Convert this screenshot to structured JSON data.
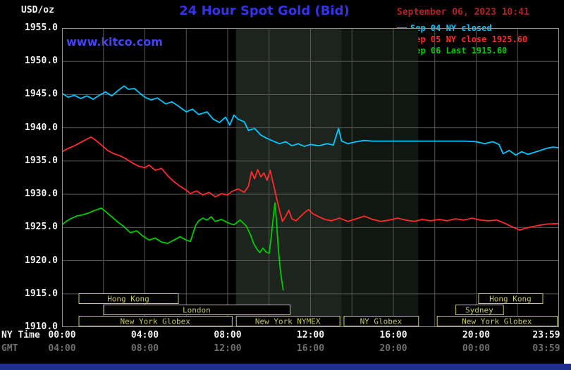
{
  "header": {
    "unit": "USD/oz",
    "title": "24 Hour Spot Gold (Bid)",
    "datetime": "September 06, 2023 10:41",
    "watermark": "www.kitco.com"
  },
  "legend": {
    "items": [
      {
        "label": "Sep 04 NY closed",
        "color": "#00c8ff"
      },
      {
        "label": "Sep 05 NY close 1925.60",
        "color": "#ff2a2a"
      },
      {
        "label": "Sep 06 Last 1915.60",
        "color": "#00cc00"
      }
    ]
  },
  "colors": {
    "background": "#000000",
    "title_text": "#3333ee",
    "date_text": "#b22222",
    "watermark_text": "#4444ff",
    "grid": "#565656",
    "frame": "#8d8d8d",
    "session": "#c8c864",
    "tick_text": "#f0f0f0",
    "gmt_text": "#6f6f6f",
    "footer_bar": "#1f2f8e"
  },
  "axes": {
    "ny_label": "NY Time",
    "gmt_label": "GMT",
    "yticks": [
      {
        "label": "1955.0",
        "value": 1955
      },
      {
        "label": "1950.0",
        "value": 1950
      },
      {
        "label": "1945.0",
        "value": 1945
      },
      {
        "label": "1940.0",
        "value": 1940
      },
      {
        "label": "1935.0",
        "value": 1935
      },
      {
        "label": "1930.0",
        "value": 1930
      },
      {
        "label": "1925.0",
        "value": 1925
      },
      {
        "label": "1920.0",
        "value": 1920
      },
      {
        "label": "1915.0",
        "value": 1915
      },
      {
        "label": "1910.0",
        "value": 1910
      }
    ],
    "xticks": [
      {
        "ny": "00:00",
        "gmt": "04:00",
        "h": 0
      },
      {
        "ny": "04:00",
        "gmt": "08:00",
        "h": 4
      },
      {
        "ny": "08:00",
        "gmt": "12:00",
        "h": 8
      },
      {
        "ny": "12:00",
        "gmt": "16:00",
        "h": 12
      },
      {
        "ny": "16:00",
        "gmt": "20:00",
        "h": 16
      },
      {
        "ny": "20:00",
        "gmt": "00:00",
        "h": 20
      },
      {
        "ny": "23:59",
        "gmt": "03:59",
        "h": 23.983
      }
    ]
  },
  "chart_data": {
    "type": "line",
    "title": "24 Hour Spot Gold (Bid)",
    "xlabel": "NY Time (hours)",
    "ylabel": "USD/oz",
    "ylim": [
      1910,
      1955
    ],
    "xlim_hours": [
      0,
      24
    ],
    "grid": {
      "x_step_hours": 2,
      "y_step": 5
    },
    "legend_position": "top-right",
    "session_bands": [
      {
        "start": 8.4,
        "end": 13.5,
        "color": "#1d241d"
      },
      {
        "start": 13.5,
        "end": 17.2,
        "color": "#101710"
      }
    ],
    "session_boxes": [
      {
        "label": "Hong Kong",
        "row": 0,
        "start": 0.8,
        "end": 5.6
      },
      {
        "label": "London",
        "row": 1,
        "start": 2.0,
        "end": 11.0
      },
      {
        "label": "New York Globex",
        "row": 2,
        "start": 0.8,
        "end": 8.2
      },
      {
        "label": "New York NYMEX",
        "row": 2,
        "start": 8.4,
        "end": 13.4
      },
      {
        "label": "NY Globex",
        "row": 2,
        "start": 13.6,
        "end": 17.2
      },
      {
        "label": "New York Globex",
        "row": 2,
        "start": 18.1,
        "end": 23.9
      },
      {
        "label": "Sydney",
        "row": 1,
        "start": 19.0,
        "end": 21.3
      },
      {
        "label": "Hong Kong",
        "row": 0,
        "start": 20.1,
        "end": 23.2
      }
    ],
    "series": [
      {
        "name": "Sep 04 NY closed",
        "color": "#00c8ff",
        "points": [
          [
            0,
            1945.2
          ],
          [
            0.3,
            1944.6
          ],
          [
            0.6,
            1944.9
          ],
          [
            0.9,
            1944.4
          ],
          [
            1.2,
            1944.8
          ],
          [
            1.5,
            1944.3
          ],
          [
            1.8,
            1944.9
          ],
          [
            2.1,
            1945.4
          ],
          [
            2.4,
            1944.8
          ],
          [
            2.7,
            1945.6
          ],
          [
            3.0,
            1946.3
          ],
          [
            3.2,
            1945.8
          ],
          [
            3.5,
            1945.9
          ],
          [
            3.8,
            1945.1
          ],
          [
            4.0,
            1944.6
          ],
          [
            4.3,
            1944.2
          ],
          [
            4.6,
            1944.5
          ],
          [
            5.0,
            1943.6
          ],
          [
            5.3,
            1943.9
          ],
          [
            5.6,
            1943.3
          ],
          [
            6.0,
            1942.4
          ],
          [
            6.3,
            1942.8
          ],
          [
            6.6,
            1942.0
          ],
          [
            7.0,
            1942.4
          ],
          [
            7.3,
            1941.3
          ],
          [
            7.6,
            1940.8
          ],
          [
            7.9,
            1941.6
          ],
          [
            8.1,
            1940.4
          ],
          [
            8.3,
            1941.9
          ],
          [
            8.5,
            1941.3
          ],
          [
            8.8,
            1940.9
          ],
          [
            9.0,
            1939.6
          ],
          [
            9.3,
            1939.9
          ],
          [
            9.6,
            1938.9
          ],
          [
            9.9,
            1938.4
          ],
          [
            10.2,
            1938.0
          ],
          [
            10.5,
            1937.6
          ],
          [
            10.8,
            1937.9
          ],
          [
            11.1,
            1937.3
          ],
          [
            11.4,
            1937.6
          ],
          [
            11.7,
            1937.2
          ],
          [
            12.0,
            1937.5
          ],
          [
            12.4,
            1937.3
          ],
          [
            12.8,
            1937.6
          ],
          [
            13.1,
            1937.4
          ],
          [
            13.35,
            1939.9
          ],
          [
            13.5,
            1938.0
          ],
          [
            13.8,
            1937.6
          ],
          [
            14.2,
            1937.9
          ],
          [
            14.6,
            1938.1
          ],
          [
            15.0,
            1938.0
          ],
          [
            15.5,
            1938.0
          ],
          [
            16.0,
            1938.0
          ],
          [
            16.5,
            1938.0
          ],
          [
            17.0,
            1938.0
          ],
          [
            17.5,
            1938.0
          ],
          [
            18.0,
            1938.0
          ],
          [
            18.5,
            1938.0
          ],
          [
            19.0,
            1938.0
          ],
          [
            19.5,
            1938.0
          ],
          [
            20.0,
            1937.9
          ],
          [
            20.4,
            1937.6
          ],
          [
            20.8,
            1937.9
          ],
          [
            21.1,
            1937.5
          ],
          [
            21.3,
            1936.1
          ],
          [
            21.6,
            1936.6
          ],
          [
            21.9,
            1935.9
          ],
          [
            22.2,
            1936.4
          ],
          [
            22.5,
            1936.0
          ],
          [
            22.8,
            1936.3
          ],
          [
            23.1,
            1936.6
          ],
          [
            23.4,
            1936.9
          ],
          [
            23.7,
            1937.1
          ],
          [
            23.98,
            1937.0
          ]
        ]
      },
      {
        "name": "Sep 05 NY close 1925.60",
        "color": "#ff2a2a",
        "points": [
          [
            0,
            1936.4
          ],
          [
            0.3,
            1936.9
          ],
          [
            0.6,
            1937.3
          ],
          [
            0.9,
            1937.8
          ],
          [
            1.2,
            1938.3
          ],
          [
            1.4,
            1938.6
          ],
          [
            1.6,
            1938.2
          ],
          [
            1.9,
            1937.4
          ],
          [
            2.2,
            1936.6
          ],
          [
            2.5,
            1936.1
          ],
          [
            2.8,
            1935.8
          ],
          [
            3.1,
            1935.3
          ],
          [
            3.4,
            1934.7
          ],
          [
            3.7,
            1934.2
          ],
          [
            4.0,
            1934.0
          ],
          [
            4.2,
            1934.4
          ],
          [
            4.5,
            1933.6
          ],
          [
            4.8,
            1933.9
          ],
          [
            5.1,
            1932.8
          ],
          [
            5.4,
            1931.9
          ],
          [
            5.7,
            1931.2
          ],
          [
            6.0,
            1930.6
          ],
          [
            6.2,
            1930.1
          ],
          [
            6.5,
            1930.5
          ],
          [
            6.8,
            1929.9
          ],
          [
            7.1,
            1930.3
          ],
          [
            7.4,
            1929.6
          ],
          [
            7.7,
            1930.1
          ],
          [
            8.0,
            1929.9
          ],
          [
            8.2,
            1930.4
          ],
          [
            8.5,
            1930.8
          ],
          [
            8.8,
            1930.3
          ],
          [
            9.0,
            1931.2
          ],
          [
            9.15,
            1933.4
          ],
          [
            9.3,
            1932.3
          ],
          [
            9.45,
            1933.7
          ],
          [
            9.6,
            1932.6
          ],
          [
            9.75,
            1933.2
          ],
          [
            9.9,
            1932.1
          ],
          [
            10.05,
            1933.6
          ],
          [
            10.2,
            1931.6
          ],
          [
            10.35,
            1929.6
          ],
          [
            10.5,
            1927.6
          ],
          [
            10.65,
            1925.9
          ],
          [
            10.8,
            1926.7
          ],
          [
            10.95,
            1927.6
          ],
          [
            11.1,
            1926.3
          ],
          [
            11.3,
            1926.0
          ],
          [
            11.5,
            1926.6
          ],
          [
            11.7,
            1927.2
          ],
          [
            11.9,
            1927.7
          ],
          [
            12.1,
            1927.1
          ],
          [
            12.4,
            1926.6
          ],
          [
            12.7,
            1926.2
          ],
          [
            13.0,
            1926.0
          ],
          [
            13.4,
            1926.4
          ],
          [
            13.8,
            1925.9
          ],
          [
            14.2,
            1926.3
          ],
          [
            14.6,
            1926.7
          ],
          [
            15.0,
            1926.2
          ],
          [
            15.4,
            1925.9
          ],
          [
            15.8,
            1926.1
          ],
          [
            16.2,
            1926.4
          ],
          [
            16.6,
            1926.1
          ],
          [
            17.0,
            1925.9
          ],
          [
            17.4,
            1926.2
          ],
          [
            17.8,
            1926.0
          ],
          [
            18.2,
            1926.2
          ],
          [
            18.6,
            1926.0
          ],
          [
            19.0,
            1926.3
          ],
          [
            19.4,
            1926.1
          ],
          [
            19.8,
            1926.4
          ],
          [
            20.2,
            1926.1
          ],
          [
            20.6,
            1926.0
          ],
          [
            21.0,
            1926.1
          ],
          [
            21.4,
            1925.6
          ],
          [
            21.8,
            1925.0
          ],
          [
            22.1,
            1924.6
          ],
          [
            22.4,
            1924.9
          ],
          [
            22.7,
            1925.1
          ],
          [
            23.0,
            1925.3
          ],
          [
            23.4,
            1925.5
          ],
          [
            23.98,
            1925.6
          ]
        ]
      },
      {
        "name": "Sep 06 Last 1915.60",
        "color": "#00cc00",
        "points": [
          [
            0,
            1925.4
          ],
          [
            0.2,
            1925.9
          ],
          [
            0.4,
            1926.3
          ],
          [
            0.7,
            1926.7
          ],
          [
            1.0,
            1926.9
          ],
          [
            1.3,
            1927.2
          ],
          [
            1.6,
            1927.6
          ],
          [
            1.9,
            1927.9
          ],
          [
            2.1,
            1927.4
          ],
          [
            2.4,
            1926.6
          ],
          [
            2.7,
            1925.8
          ],
          [
            3.0,
            1925.1
          ],
          [
            3.3,
            1924.2
          ],
          [
            3.6,
            1924.5
          ],
          [
            3.9,
            1923.7
          ],
          [
            4.2,
            1923.1
          ],
          [
            4.5,
            1923.4
          ],
          [
            4.8,
            1922.8
          ],
          [
            5.1,
            1922.6
          ],
          [
            5.4,
            1923.1
          ],
          [
            5.7,
            1923.6
          ],
          [
            6.0,
            1923.1
          ],
          [
            6.2,
            1922.9
          ],
          [
            6.45,
            1925.3
          ],
          [
            6.6,
            1926.0
          ],
          [
            6.8,
            1926.4
          ],
          [
            7.0,
            1926.1
          ],
          [
            7.2,
            1926.6
          ],
          [
            7.4,
            1925.9
          ],
          [
            7.7,
            1926.2
          ],
          [
            8.0,
            1925.7
          ],
          [
            8.3,
            1925.4
          ],
          [
            8.6,
            1926.1
          ],
          [
            8.9,
            1925.2
          ],
          [
            9.1,
            1923.9
          ],
          [
            9.25,
            1922.6
          ],
          [
            9.4,
            1921.8
          ],
          [
            9.55,
            1921.2
          ],
          [
            9.7,
            1921.9
          ],
          [
            9.85,
            1921.3
          ],
          [
            10.0,
            1921.1
          ],
          [
            10.1,
            1923.5
          ],
          [
            10.2,
            1926.5
          ],
          [
            10.28,
            1928.7
          ],
          [
            10.35,
            1926.3
          ],
          [
            10.45,
            1921.5
          ],
          [
            10.55,
            1918.4
          ],
          [
            10.62,
            1916.8
          ],
          [
            10.68,
            1915.6
          ]
        ]
      }
    ]
  }
}
